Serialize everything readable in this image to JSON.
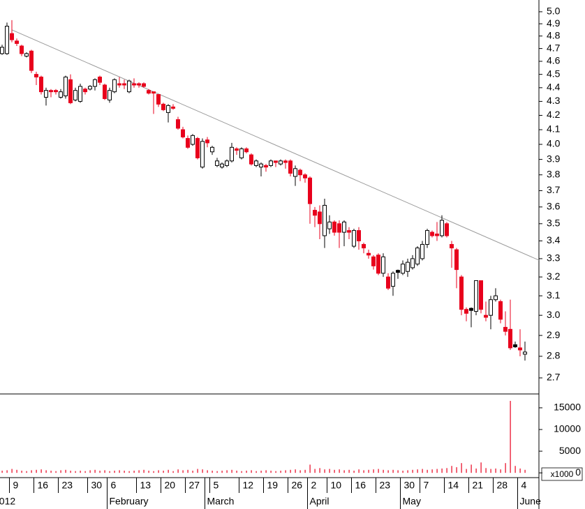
{
  "chart_data": {
    "type": "candlestick",
    "categories": [
      null,
      null,
      "9",
      null,
      null,
      null,
      null,
      "16",
      null,
      null,
      null,
      null,
      "23",
      null,
      null,
      null,
      null,
      null,
      "30",
      null,
      null,
      null,
      "6",
      null,
      null,
      null,
      null,
      null,
      "13",
      null,
      null,
      null,
      null,
      "20",
      null,
      null,
      null,
      null,
      "27",
      null,
      null,
      null,
      null,
      "5",
      null,
      null,
      null,
      null,
      null,
      "12",
      null,
      null,
      null,
      null,
      "19",
      null,
      null,
      null,
      null,
      "26",
      null,
      null,
      null,
      "2",
      null,
      null,
      null,
      "10",
      null,
      null,
      null,
      null,
      "16",
      null,
      null,
      null,
      null,
      "23",
      null,
      null,
      null,
      null,
      "30",
      null,
      null,
      null,
      "7",
      null,
      null,
      null,
      null,
      "14",
      null,
      null,
      null,
      null,
      "21",
      null,
      null,
      null,
      null,
      "28",
      null,
      null,
      null,
      null,
      "4",
      null
    ],
    "months": [
      "2012",
      null,
      null,
      null,
      null,
      null,
      null,
      null,
      null,
      null,
      null,
      null,
      null,
      null,
      null,
      null,
      null,
      null,
      null,
      null,
      null,
      null,
      "February",
      null,
      null,
      null,
      null,
      null,
      null,
      null,
      null,
      null,
      null,
      null,
      null,
      null,
      null,
      null,
      null,
      null,
      null,
      null,
      "March",
      null,
      null,
      null,
      null,
      null,
      null,
      null,
      null,
      null,
      null,
      null,
      null,
      null,
      null,
      null,
      null,
      null,
      null,
      null,
      null,
      "April",
      null,
      null,
      null,
      null,
      null,
      null,
      null,
      null,
      null,
      null,
      null,
      null,
      null,
      null,
      null,
      null,
      null,
      null,
      "May",
      null,
      null,
      null,
      null,
      null,
      null,
      null,
      null,
      null,
      null,
      null,
      null,
      null,
      null,
      null,
      null,
      null,
      null,
      null,
      null,
      null,
      null,
      null,
      "June",
      null
    ],
    "open": [
      4.66,
      4.66,
      4.82,
      4.76,
      4.72,
      4.64,
      4.68,
      4.5,
      4.48,
      4.33,
      4.38,
      4.38,
      4.33,
      4.34,
      4.46,
      4.31,
      4.3,
      4.39,
      4.39,
      4.41,
      4.48,
      4.42,
      4.31,
      4.37,
      4.43,
      4.43,
      4.37,
      4.43,
      4.43,
      4.43,
      4.38,
      4.37,
      4.35,
      4.28,
      4.22,
      4.26,
      4.17,
      4.1,
      4.04,
      4.0,
      4.04,
      3.85,
      4.03,
      3.95,
      3.86,
      3.85,
      3.86,
      3.89,
      3.97,
      3.91,
      3.97,
      3.93,
      3.86,
      3.85,
      3.86,
      3.86,
      3.89,
      3.87,
      3.89,
      3.89,
      3.79,
      3.83,
      3.8,
      3.78,
      3.58,
      3.57,
      3.43,
      3.47,
      3.51,
      3.5,
      3.45,
      3.46,
      3.37,
      3.46,
      3.38,
      3.33,
      3.31,
      3.32,
      3.22,
      3.2,
      3.15,
      3.23,
      3.22,
      3.23,
      3.25,
      3.27,
      3.3,
      3.38,
      3.45,
      3.44,
      3.43,
      3.5,
      3.38,
      3.35,
      3.2,
      3.03,
      3.03,
      3.02,
      3.18,
      3.0,
      3.0,
      3.08,
      3.07,
      2.94,
      2.93,
      2.85,
      2.84,
      2.81
    ],
    "high": [
      4.73,
      4.91,
      4.93,
      4.78,
      4.73,
      4.67,
      4.69,
      4.52,
      4.49,
      4.4,
      4.39,
      4.39,
      4.39,
      4.49,
      4.5,
      4.4,
      4.43,
      4.4,
      4.42,
      4.47,
      4.49,
      4.43,
      4.4,
      4.47,
      4.48,
      4.46,
      4.46,
      4.47,
      4.44,
      4.44,
      4.39,
      4.37,
      4.35,
      4.29,
      4.28,
      4.28,
      4.19,
      4.12,
      4.06,
      4.07,
      4.05,
      4.04,
      4.05,
      3.99,
      3.91,
      3.88,
      3.9,
      4.01,
      3.98,
      3.98,
      3.98,
      3.94,
      3.9,
      3.88,
      3.87,
      3.9,
      3.89,
      3.9,
      3.9,
      3.9,
      3.86,
      3.84,
      3.81,
      3.79,
      3.6,
      3.61,
      3.65,
      3.55,
      3.52,
      3.52,
      3.52,
      3.48,
      3.47,
      3.48,
      3.39,
      3.35,
      3.32,
      3.33,
      3.33,
      3.22,
      3.23,
      3.24,
      3.29,
      3.3,
      3.32,
      3.37,
      3.4,
      3.47,
      3.46,
      3.51,
      3.55,
      3.51,
      3.4,
      3.36,
      3.21,
      3.04,
      3.04,
      3.18,
      3.18,
      3.07,
      3.1,
      3.14,
      3.08,
      3.02,
      3.08,
      2.87,
      2.93,
      2.87
    ],
    "low": [
      4.65,
      4.65,
      4.75,
      4.72,
      4.64,
      4.63,
      4.51,
      4.42,
      4.35,
      4.27,
      4.33,
      4.35,
      4.32,
      4.32,
      4.28,
      4.3,
      4.29,
      4.35,
      4.38,
      4.38,
      4.42,
      4.31,
      4.29,
      4.36,
      4.4,
      4.39,
      4.36,
      4.4,
      4.4,
      4.4,
      4.35,
      4.21,
      4.26,
      4.23,
      4.15,
      4.24,
      4.1,
      4.04,
      3.97,
      3.99,
      3.9,
      3.84,
      3.98,
      3.93,
      3.85,
      3.84,
      3.85,
      3.88,
      3.93,
      3.9,
      3.94,
      3.86,
      3.85,
      3.79,
      3.82,
      3.85,
      3.85,
      3.86,
      3.84,
      3.79,
      3.73,
      3.76,
      3.75,
      3.5,
      3.48,
      3.41,
      3.36,
      3.44,
      3.43,
      3.36,
      3.37,
      3.41,
      3.36,
      3.35,
      3.33,
      3.3,
      3.24,
      3.21,
      3.2,
      3.13,
      3.1,
      3.19,
      3.21,
      3.2,
      3.24,
      3.26,
      3.29,
      3.36,
      3.42,
      3.4,
      3.42,
      3.42,
      3.25,
      3.14,
      3.0,
      2.97,
      2.94,
      3.0,
      3.01,
      2.97,
      2.93,
      3.07,
      2.96,
      2.9,
      2.83,
      2.84,
      2.8,
      2.78
    ],
    "close": [
      4.71,
      4.88,
      4.77,
      4.74,
      4.66,
      4.66,
      4.53,
      4.48,
      4.37,
      4.38,
      4.37,
      4.37,
      4.37,
      4.48,
      4.29,
      4.38,
      4.41,
      4.37,
      4.41,
      4.46,
      4.44,
      4.32,
      4.38,
      4.46,
      4.42,
      4.42,
      4.45,
      4.42,
      4.42,
      4.41,
      4.36,
      4.36,
      4.28,
      4.24,
      4.27,
      4.25,
      4.11,
      4.05,
      3.98,
      4.06,
      3.91,
      4.02,
      4.01,
      3.98,
      3.89,
      3.87,
      3.89,
      3.98,
      3.96,
      3.97,
      3.95,
      3.87,
      3.89,
      3.87,
      3.85,
      3.89,
      3.88,
      3.89,
      3.88,
      3.81,
      3.84,
      3.8,
      3.78,
      3.62,
      3.55,
      3.5,
      3.61,
      3.51,
      3.45,
      3.45,
      3.51,
      3.45,
      3.46,
      3.4,
      3.36,
      3.32,
      3.26,
      3.22,
      3.31,
      3.14,
      3.22,
      3.23,
      3.27,
      3.28,
      3.3,
      3.36,
      3.38,
      3.46,
      3.43,
      3.43,
      3.52,
      3.43,
      3.36,
      3.24,
      3.03,
      3.01,
      3.03,
      3.18,
      3.03,
      2.99,
      3.08,
      3.1,
      2.98,
      2.92,
      2.84,
      2.85,
      2.83,
      2.82
    ],
    "volume": [
      500,
      600,
      900,
      700,
      500,
      400,
      600,
      700,
      800,
      600,
      500,
      400,
      600,
      700,
      500,
      400,
      500,
      400,
      600,
      700,
      500,
      600,
      400,
      500,
      600,
      500,
      400,
      500,
      600,
      700,
      500,
      400,
      600,
      500,
      700,
      400,
      800,
      600,
      700,
      500,
      900,
      800,
      600,
      500,
      400,
      500,
      600,
      700,
      500,
      400,
      500,
      600,
      400,
      500,
      600,
      500,
      400,
      500,
      600,
      700,
      800,
      600,
      700,
      1900,
      900,
      1100,
      800,
      900,
      700,
      800,
      600,
      700,
      500,
      800,
      600,
      700,
      800,
      900,
      700,
      600,
      700,
      600,
      500,
      600,
      700,
      800,
      900,
      700,
      800,
      900,
      1000,
      1100,
      1600,
      1300,
      2250,
      900,
      1900,
      1000,
      2400,
      1100,
      900,
      1000,
      800,
      2250,
      16600,
      1600,
      1000,
      700
    ],
    "up_color": "#ffffff",
    "down_color": "#e8001c",
    "flat_color": "#000000",
    "volume_color": "#e8001c",
    "log_scale": true,
    "ylim": [
      2.628,
      5.1
    ],
    "yticks": [
      2.7,
      2.8,
      2.9,
      {
        "value": 3.0,
        "label": "3.0"
      },
      3.1,
      3.2,
      3.3,
      3.4,
      3.5,
      3.6,
      3.7,
      3.8,
      3.9,
      {
        "value": 4.0,
        "label": "4.0"
      },
      4.1,
      4.2,
      4.3,
      4.4,
      4.5,
      4.6,
      4.7,
      4.8,
      4.9,
      {
        "value": 5.0,
        "label": "5.0"
      }
    ],
    "volume_ylim": [
      -1100,
      18200
    ],
    "volume_yticks": [
      0,
      5000,
      10000,
      15000
    ],
    "volume_unit": "x1000",
    "trendline": {
      "x": [
        2,
        110
      ],
      "y": [
        4.85,
        3.29
      ],
      "color": "#999999"
    }
  }
}
